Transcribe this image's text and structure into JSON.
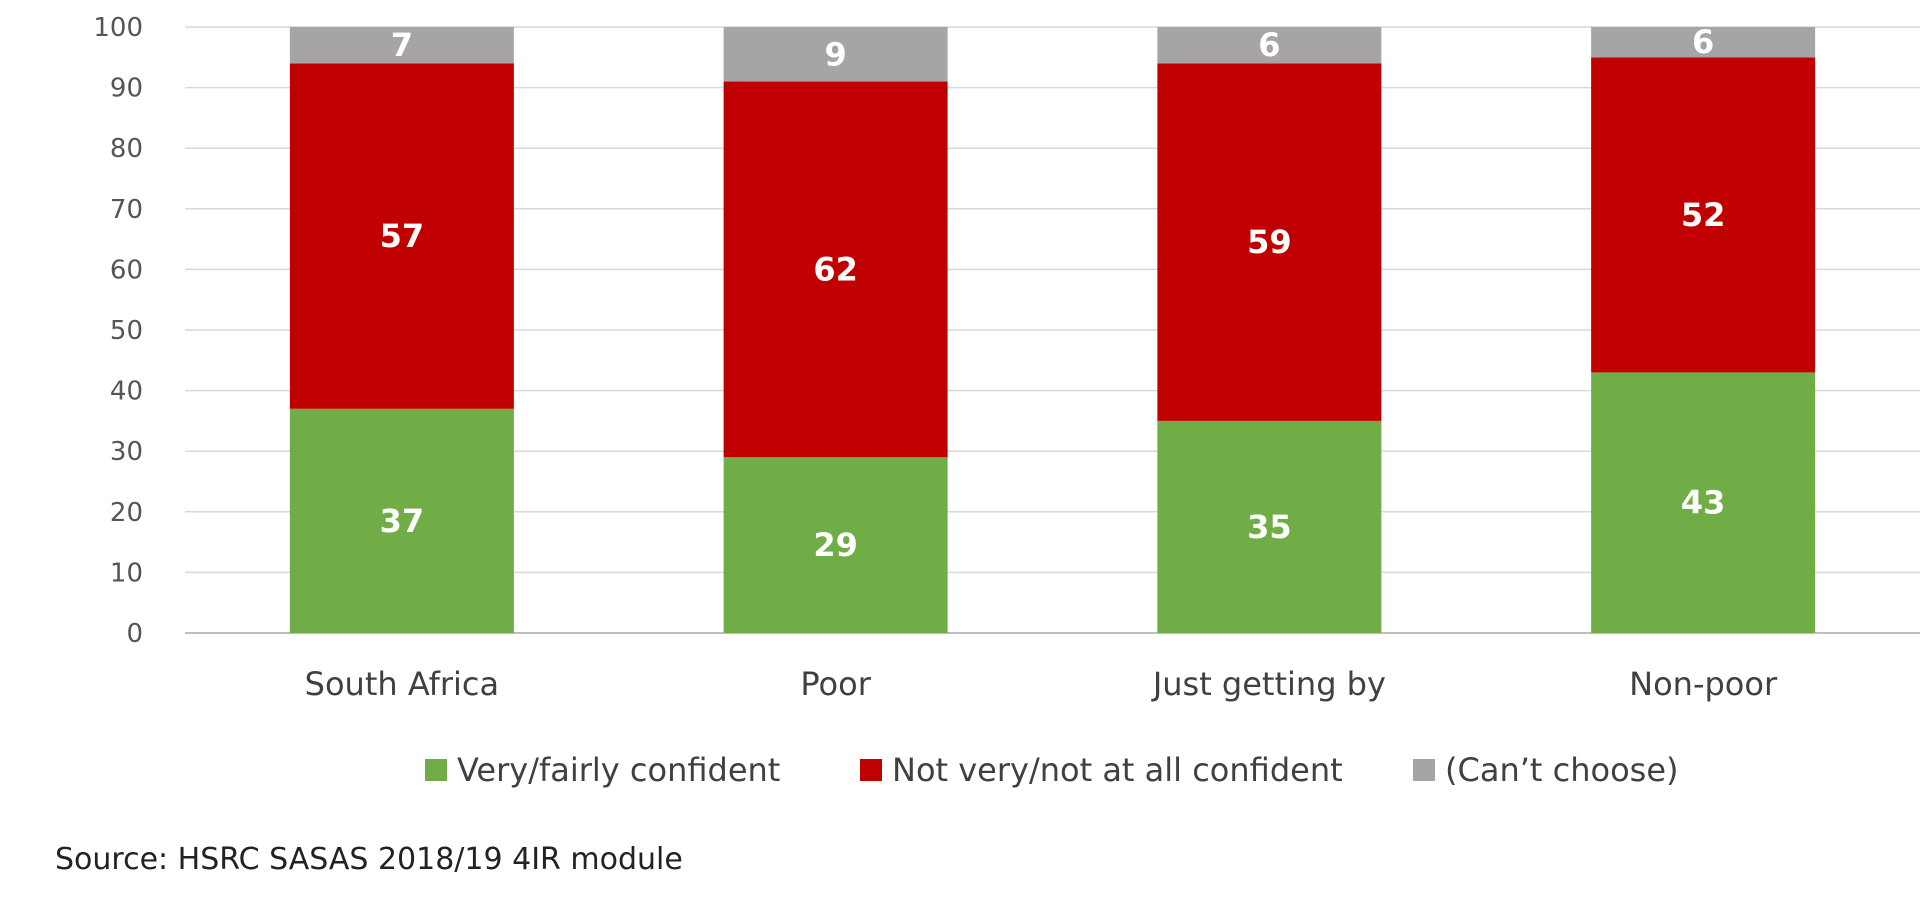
{
  "chart_data": {
    "type": "bar",
    "stacked": true,
    "categories": [
      "South Africa",
      "Poor",
      "Just getting by",
      "Non-poor"
    ],
    "series": [
      {
        "name": "Very/fairly confident",
        "values": [
          37,
          29,
          35,
          43
        ],
        "color": "#70ad47"
      },
      {
        "name": "Not very/not at all confident",
        "values": [
          57,
          62,
          59,
          52
        ],
        "color": "#c00000"
      },
      {
        "name": "(Can’t choose)",
        "values": [
          7,
          9,
          6,
          6
        ],
        "color": "#a5a5a5"
      }
    ],
    "ylim": [
      0,
      100
    ],
    "yticks": [
      0,
      10,
      20,
      30,
      40,
      50,
      60,
      70,
      80,
      90,
      100
    ],
    "grid": true,
    "legend_position": "bottom",
    "source": "Source: HSRC SASAS 2018/19 4IR module"
  }
}
